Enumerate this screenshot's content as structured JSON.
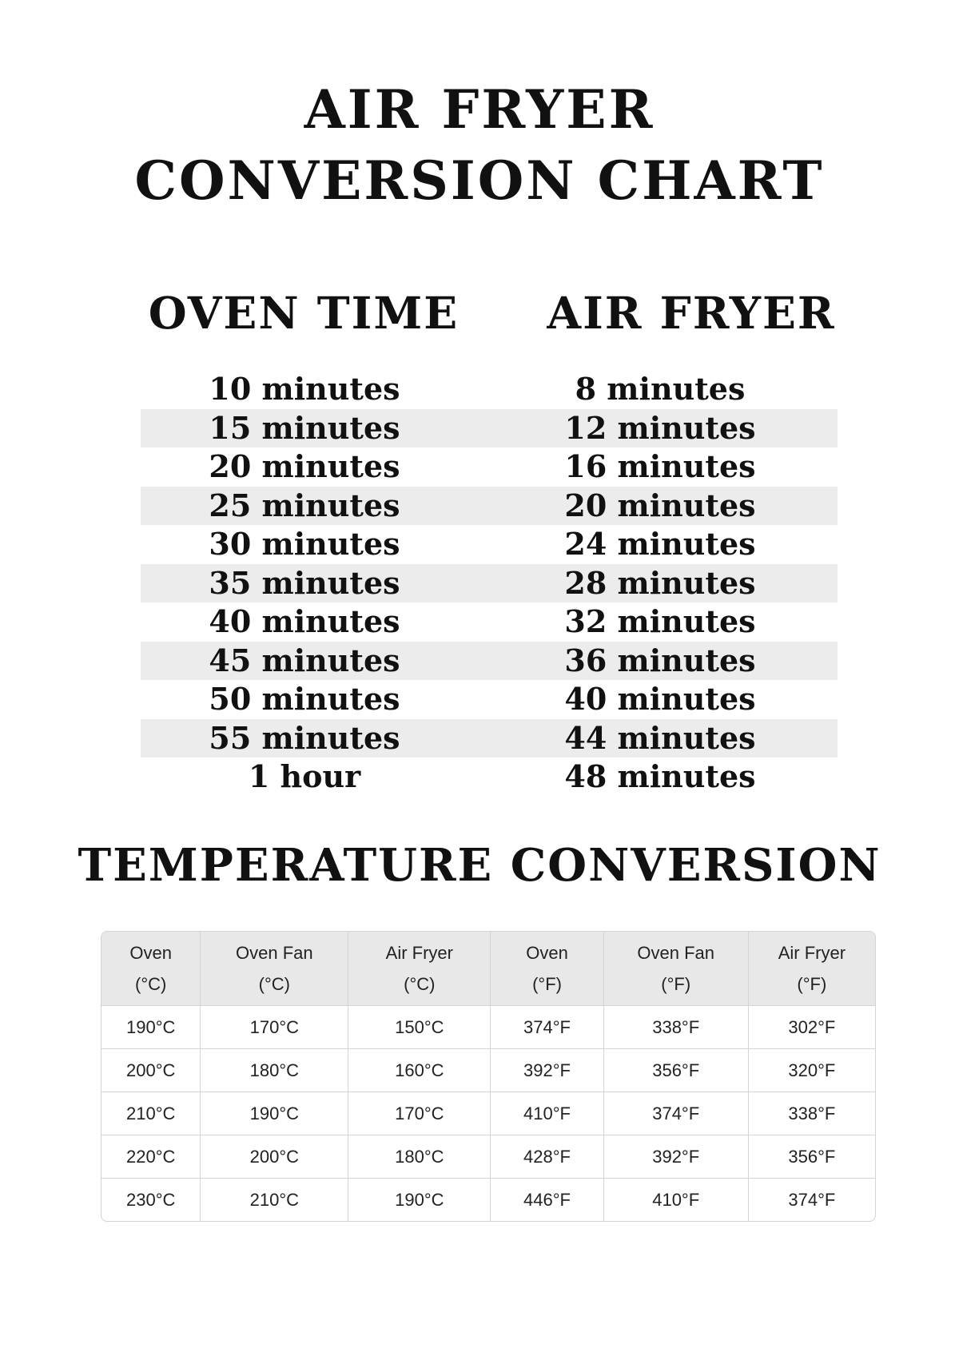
{
  "title": {
    "line1": "AIR FRYER",
    "line2": "CONVERSION CHART"
  },
  "time_table": {
    "headers": [
      "OVEN TIME",
      "AIR FRYER"
    ],
    "rows": [
      [
        "10 minutes",
        "8 minutes"
      ],
      [
        "15 minutes",
        "12 minutes"
      ],
      [
        "20 minutes",
        "16 minutes"
      ],
      [
        "25 minutes",
        "20 minutes"
      ],
      [
        "30 minutes",
        "24 minutes"
      ],
      [
        "35 minutes",
        "28 minutes"
      ],
      [
        "40 minutes",
        "32 minutes"
      ],
      [
        "45 minutes",
        "36 minutes"
      ],
      [
        "50 minutes",
        "40 minutes"
      ],
      [
        "55 minutes",
        "44 minutes"
      ],
      [
        "1 hour",
        "48 minutes"
      ]
    ]
  },
  "temperature": {
    "title": "TEMPERATURE CONVERSION",
    "headers": [
      [
        "Oven",
        "(°C)"
      ],
      [
        "Oven Fan",
        "(°C)"
      ],
      [
        "Air Fryer",
        "(°C)"
      ],
      [
        "Oven",
        "(°F)"
      ],
      [
        "Oven Fan",
        "(°F)"
      ],
      [
        "Air Fryer",
        "(°F)"
      ]
    ],
    "rows": [
      [
        "190°C",
        "170°C",
        "150°C",
        "374°F",
        "338°F",
        "302°F"
      ],
      [
        "200°C",
        "180°C",
        "160°C",
        "392°F",
        "356°F",
        "320°F"
      ],
      [
        "210°C",
        "190°C",
        "170°C",
        "410°F",
        "374°F",
        "338°F"
      ],
      [
        "220°C",
        "200°C",
        "180°C",
        "428°F",
        "392°F",
        "356°F"
      ],
      [
        "230°C",
        "210°C",
        "190°C",
        "446°F",
        "410°F",
        "374°F"
      ]
    ]
  },
  "colors": {
    "text": "#111111",
    "stripe": "#ececec",
    "table_header_bg": "#e8e8e8",
    "table_border": "#d4d4d4"
  }
}
